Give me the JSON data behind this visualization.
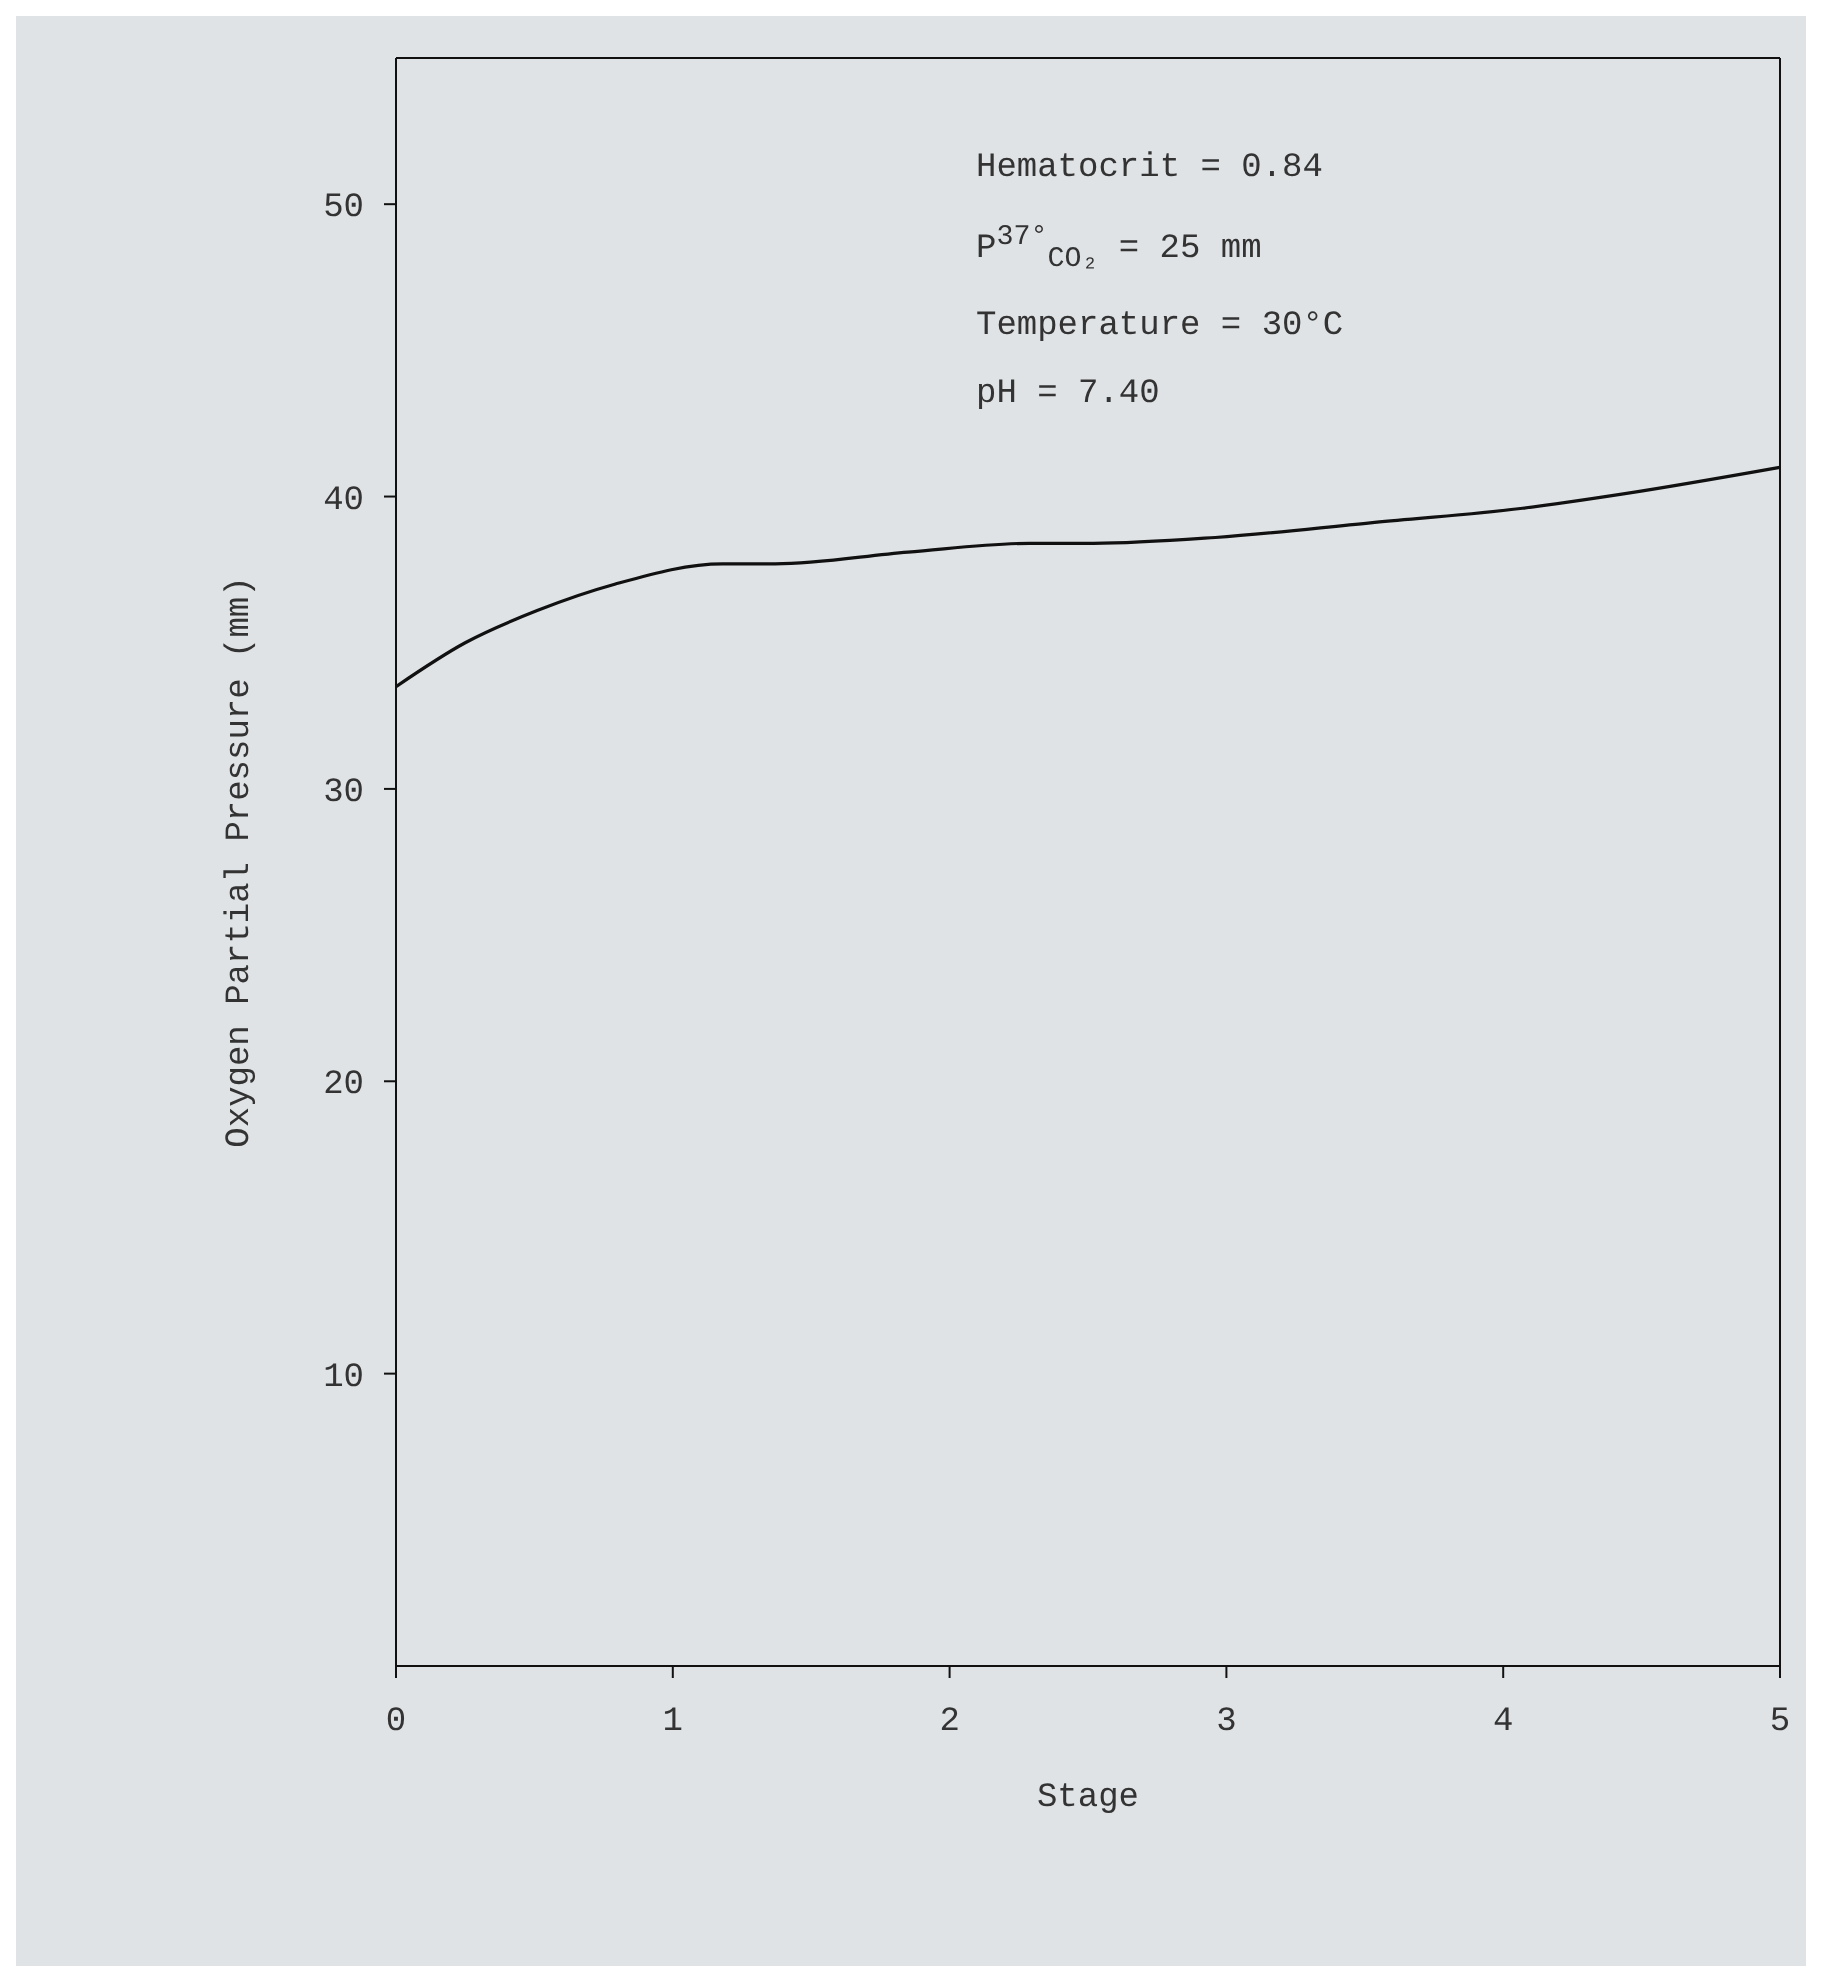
{
  "chart_data": {
    "type": "line",
    "xlabel": "Stage",
    "ylabel": "Oxygen Partial Pressure (mm)",
    "annotations": [
      "Hematocrit = 0.84",
      "P$^{37°}$$_{CO₂}$ = 25 mm",
      "Temperature = 30°C",
      "pH = 7.40"
    ],
    "series": [
      {
        "color": "#111111",
        "x": [
          0,
          0.25,
          0.51,
          0.79,
          1.18,
          1.37,
          1.85,
          2.29,
          2.52,
          2.96,
          3.52,
          4.07,
          4.44,
          5
        ],
        "values": [
          33.5,
          35.0,
          36.1,
          37.0,
          37.7,
          37.7,
          38.1,
          38.4,
          38.4,
          38.6,
          39.1,
          39.6,
          40.1,
          41.0
        ]
      }
    ],
    "xlim": [
      0,
      5
    ],
    "xticks": [
      0,
      1,
      2,
      3,
      4,
      5
    ],
    "ylim": [
      0,
      55
    ],
    "yticks": [
      10,
      20,
      30,
      40,
      50
    ],
    "grid": false,
    "marker": "none",
    "line_style": "solid"
  }
}
